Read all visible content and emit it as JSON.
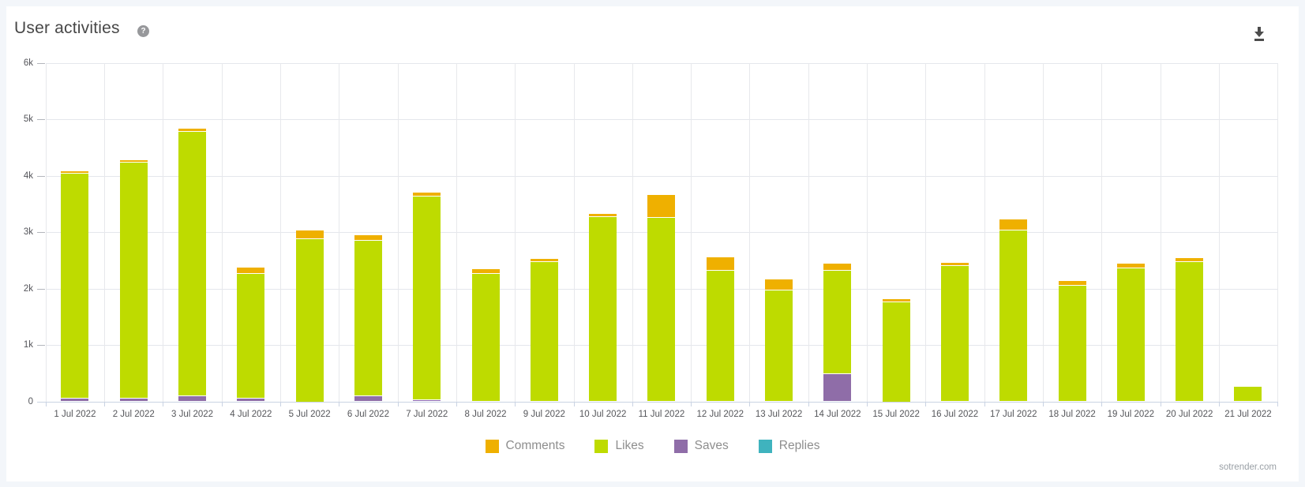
{
  "header": {
    "help_glyph": "?"
  },
  "footer": {
    "watermark": "sotrender.com"
  },
  "chart_data": {
    "type": "bar",
    "stacked": true,
    "title": "User activities",
    "xlabel": "",
    "ylabel": "",
    "ylim": [
      0,
      6000
    ],
    "yticks": [
      "6k",
      "5k",
      "4k",
      "3k",
      "2k",
      "1k",
      "0"
    ],
    "grid": true,
    "legend_position": "bottom",
    "categories": [
      "1 Jul 2022",
      "2 Jul 2022",
      "3 Jul 2022",
      "4 Jul 2022",
      "5 Jul 2022",
      "6 Jul 2022",
      "7 Jul 2022",
      "8 Jul 2022",
      "9 Jul 2022",
      "10 Jul 2022",
      "11 Jul 2022",
      "12 Jul 2022",
      "13 Jul 2022",
      "14 Jul 2022",
      "15 Jul 2022",
      "16 Jul 2022",
      "17 Jul 2022",
      "18 Jul 2022",
      "19 Jul 2022",
      "20 Jul 2022",
      "21 Jul 2022"
    ],
    "series": [
      {
        "name": "Comments",
        "color": "#efb000",
        "values": [
          40,
          45,
          60,
          100,
          150,
          100,
          70,
          80,
          55,
          55,
          410,
          240,
          195,
          115,
          60,
          45,
          205,
          85,
          80,
          70,
          0
        ]
      },
      {
        "name": "Likes",
        "color": "#bedb00",
        "values": [
          3980,
          4180,
          4690,
          2220,
          2875,
          2765,
          3600,
          2265,
          2475,
          3265,
          3245,
          2315,
          1960,
          1840,
          1750,
          2405,
          3025,
          2050,
          2355,
          2465,
          265
        ]
      },
      {
        "name": "Saves",
        "color": "#8f6da8",
        "values": [
          50,
          45,
          85,
          45,
          0,
          85,
          25,
          0,
          0,
          0,
          0,
          0,
          0,
          480,
          0,
          0,
          0,
          0,
          0,
          0,
          0
        ]
      },
      {
        "name": "Replies",
        "color": "#3fb3be",
        "values": [
          0,
          0,
          0,
          0,
          0,
          0,
          0,
          0,
          0,
          0,
          0,
          0,
          0,
          0,
          0,
          0,
          0,
          0,
          0,
          0,
          0
        ]
      }
    ],
    "stack_order_bottom_to_top": [
      "Replies",
      "Saves",
      "Likes",
      "Comments"
    ]
  }
}
